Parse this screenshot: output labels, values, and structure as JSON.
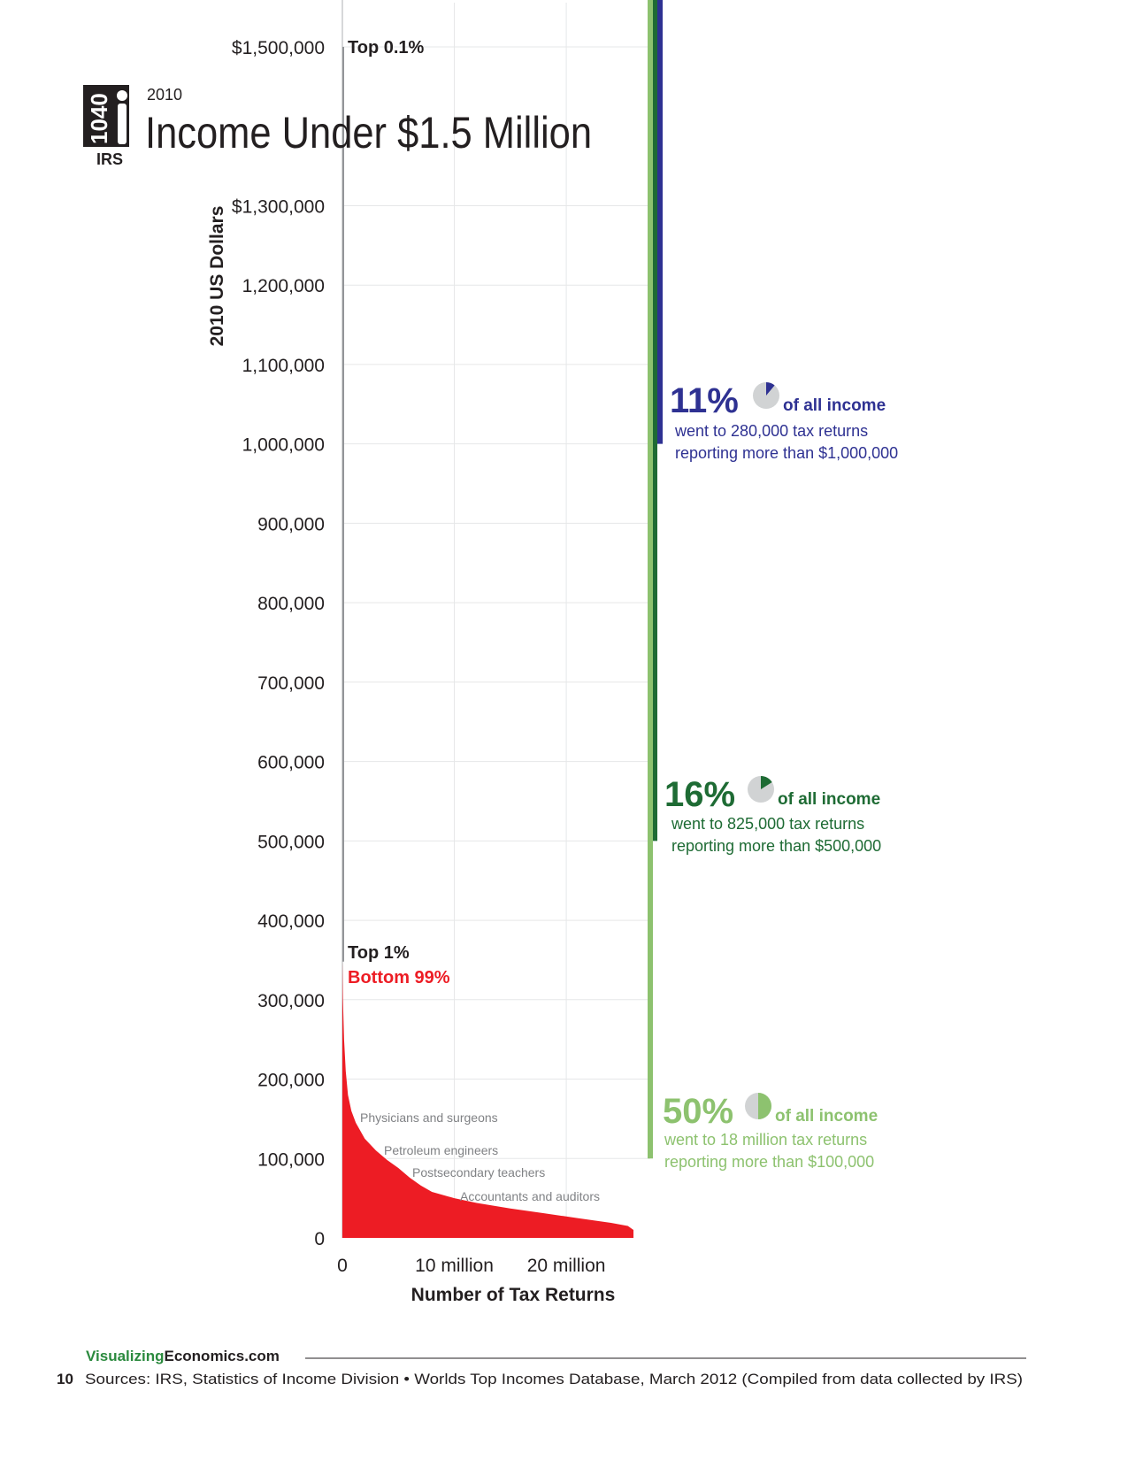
{
  "header": {
    "logo_number": "1040",
    "logo_org": "IRS",
    "year": "2010",
    "title": "Income Under $1.5 Million"
  },
  "chart_data": {
    "type": "area",
    "title": "Income Under $1.5 Million",
    "ylabel": "2010 US Dollars",
    "xlabel": "Number of Tax Returns",
    "ylim": [
      0,
      1500000
    ],
    "xlim": [
      0,
      27500000
    ],
    "y_ticks": [
      {
        "value": 0,
        "label": "0"
      },
      {
        "value": 100000,
        "label": "100,000"
      },
      {
        "value": 200000,
        "label": "200,000"
      },
      {
        "value": 300000,
        "label": "300,000"
      },
      {
        "value": 400000,
        "label": "400,000"
      },
      {
        "value": 500000,
        "label": "500,000"
      },
      {
        "value": 600000,
        "label": "600,000"
      },
      {
        "value": 700000,
        "label": "700,000"
      },
      {
        "value": 800000,
        "label": "800,000"
      },
      {
        "value": 900000,
        "label": "900,000"
      },
      {
        "value": 1000000,
        "label": "1,000,000"
      },
      {
        "value": 1100000,
        "label": "1,100,000"
      },
      {
        "value": 1200000,
        "label": "1,200,000"
      },
      {
        "value": 1300000,
        "label": "$1,300,000"
      },
      {
        "value": 1500000,
        "label": "$1,500,000"
      }
    ],
    "x_ticks": [
      {
        "value": 0,
        "label": "0"
      },
      {
        "value": 10000000,
        "label": "10 million"
      },
      {
        "value": 20000000,
        "label": "20 million"
      }
    ],
    "grid": true,
    "series": [
      {
        "name": "Bottom 99%",
        "color": "#ed1c24",
        "x": [
          0,
          50000,
          150000,
          300000,
          500000,
          800000,
          1200000,
          2000000,
          3000000,
          4000000,
          5000000,
          6000000,
          7000000,
          8000000,
          10000000,
          12000000,
          15000000,
          18000000,
          21000000,
          24000000,
          25500000,
          26000000
        ],
        "y": [
          348000,
          300000,
          250000,
          210000,
          180000,
          160000,
          145000,
          125000,
          110000,
          98000,
          88000,
          76000,
          66000,
          58000,
          50000,
          44000,
          37000,
          31000,
          25000,
          19000,
          15000,
          10000
        ]
      },
      {
        "name": "Top 1%",
        "color": "#939598",
        "x": [
          0,
          0
        ],
        "y": [
          348000,
          1500000
        ]
      }
    ],
    "band_labels": [
      {
        "text": "Top 0.1%",
        "color": "#231f20"
      },
      {
        "text": "Top 1%",
        "color": "#231f20"
      },
      {
        "text": "Bottom 99%",
        "color": "#ed1c24"
      }
    ],
    "occupations": [
      {
        "label": "Physicians and surgeons",
        "income": 190000
      },
      {
        "label": "Petroleum engineers",
        "income": 130000
      },
      {
        "label": "Postsecondary teachers",
        "income": 97000
      },
      {
        "label": "Accountants and auditors",
        "income": 66000
      }
    ],
    "income_shares": [
      {
        "pct": "11%",
        "share": 0.11,
        "of": "of all income",
        "line1": "went to 280,000 tax returns",
        "line2": "reporting more than $1,000,000",
        "threshold": 1000000,
        "color": "#2e3192"
      },
      {
        "pct": "16%",
        "share": 0.16,
        "of": "of all income",
        "line1": "went to 825,000 tax returns",
        "line2": "reporting more than $500,000",
        "threshold": 500000,
        "color": "#1e6b34"
      },
      {
        "pct": "50%",
        "share": 0.5,
        "of": "of all income",
        "line1": "went to 18 million tax returns",
        "line2": "reporting more than $100,000",
        "threshold": 100000,
        "color": "#8dc26f"
      }
    ],
    "pie_bg_color": "#d1d3d4"
  },
  "footer": {
    "brand_part1": "Visualizing",
    "brand_part2": "Economics.com",
    "brand_color1": "#2b8a3e",
    "brand_color2": "#231f20",
    "page_number": "10",
    "sources": "Sources: IRS, Statistics of Income Division • Worlds Top Incomes Database, March 2012 (Compiled from data collected by IRS)"
  }
}
